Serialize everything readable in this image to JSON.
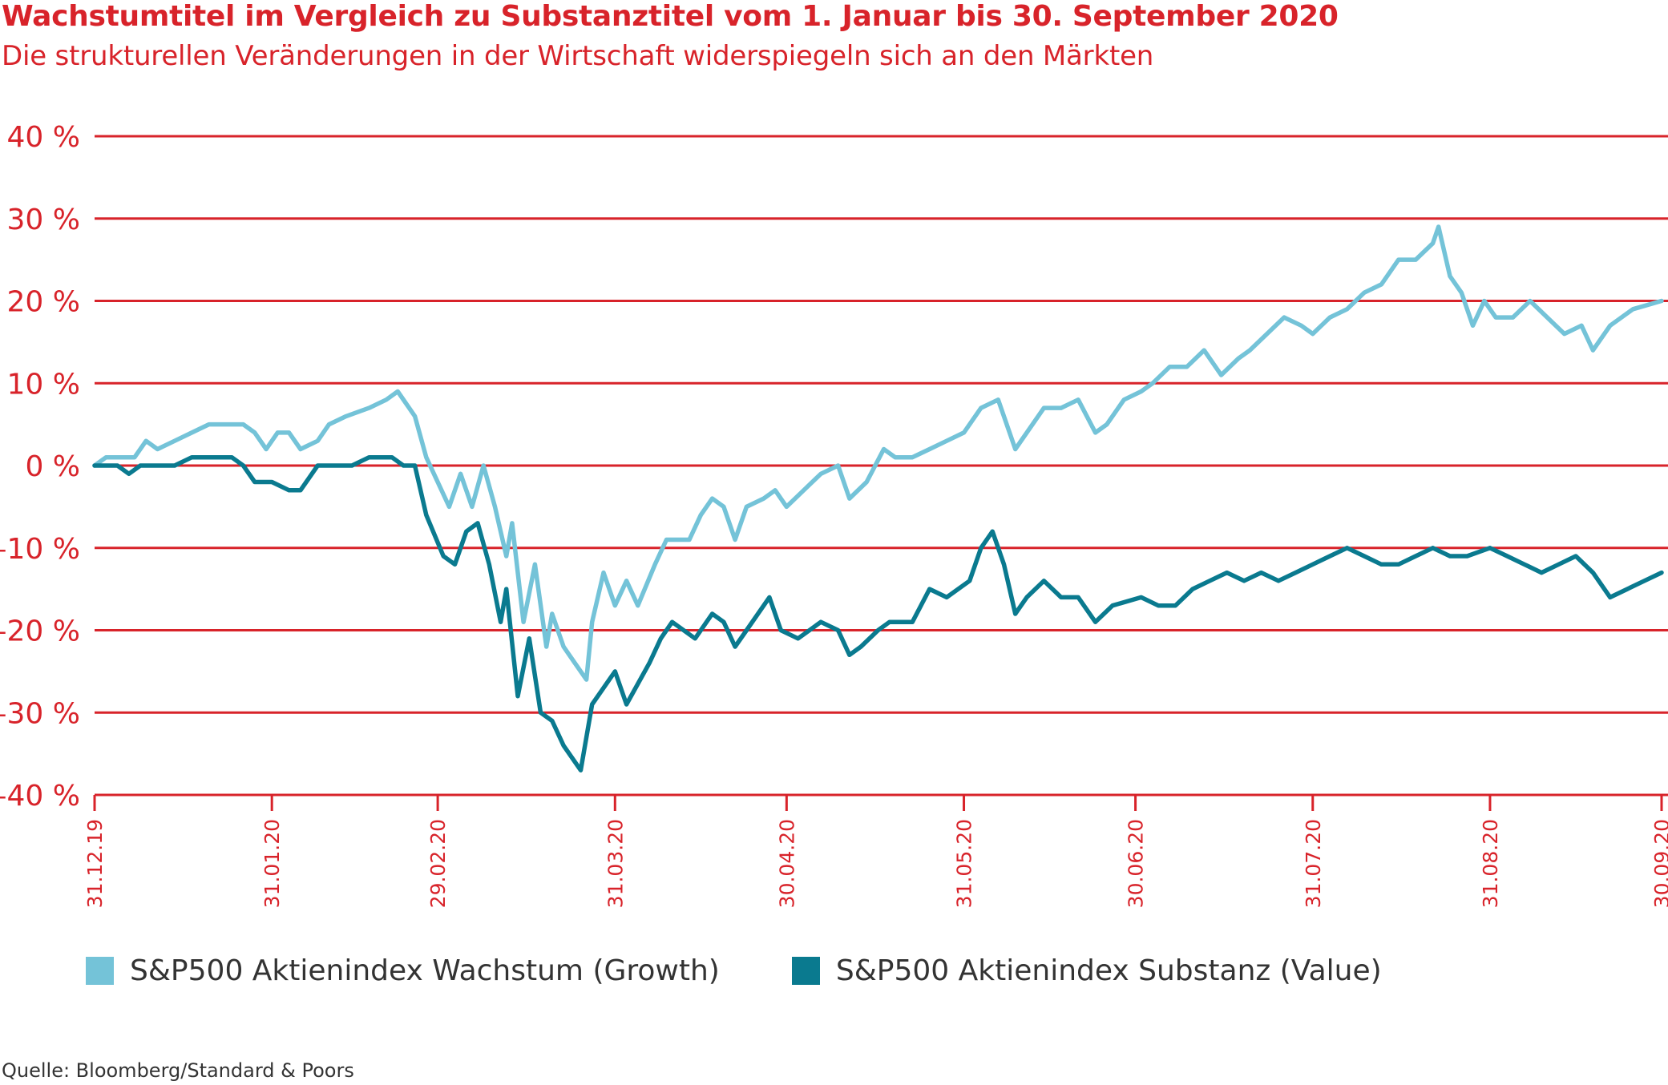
{
  "title": "Wachstumtitel im Vergleich zu Substanztitel vom 1. Januar bis 30. September 2020",
  "subtitle": "Die strukturellen Veränderungen in der Wirtschaft widerspiegeln sich an den Märkten",
  "source": "Quelle: Bloomberg/Standard & Poors",
  "colors": {
    "accent": "#d8232a",
    "growth": "#74c3d8",
    "value": "#0a7a8f",
    "text": "#333333"
  },
  "legend": [
    {
      "label": "S&P500 Aktienindex Wachstum (Growth)",
      "color": "#74c3d8"
    },
    {
      "label": "S&P500 Aktienindex Substanz (Value)",
      "color": "#0a7a8f"
    }
  ],
  "chart_data": {
    "type": "line",
    "title": "Wachstumtitel im Vergleich zu Substanztitel vom 1. Januar bis 30. September 2020",
    "ylim": [
      -40,
      40
    ],
    "y_ticks": [
      40,
      30,
      20,
      10,
      0,
      -10,
      -20,
      -30,
      -40
    ],
    "y_tick_labels": [
      "40 %",
      "30 %",
      "20 %",
      "10 %",
      "0 %",
      "–10 %",
      "–20 %",
      "–30 %",
      "–40 %"
    ],
    "x_tick_labels": [
      "31.12.19",
      "31.01.20",
      "29.02.20",
      "31.03.20",
      "30.04.20",
      "31.05.20",
      "30.06.20",
      "31.07.20",
      "31.08.20",
      "30.09.20"
    ],
    "grid": true,
    "legend_position": "bottom",
    "series": [
      {
        "name": "S&P500 Aktienindex Wachstum (Growth)",
        "color": "#74c3d8",
        "points": [
          [
            "31.12.19",
            0
          ],
          [
            "02.01.20",
            1
          ],
          [
            "07.01.20",
            1
          ],
          [
            "09.01.20",
            3
          ],
          [
            "11.01.20",
            2
          ],
          [
            "14.01.20",
            3
          ],
          [
            "17.01.20",
            4
          ],
          [
            "20.01.20",
            5
          ],
          [
            "26.01.20",
            5
          ],
          [
            "28.01.20",
            4
          ],
          [
            "30.01.20",
            2
          ],
          [
            "01.02.20",
            4
          ],
          [
            "03.02.20",
            4
          ],
          [
            "05.02.20",
            2
          ],
          [
            "08.02.20",
            3
          ],
          [
            "10.02.20",
            5
          ],
          [
            "13.02.20",
            6
          ],
          [
            "17.02.20",
            7
          ],
          [
            "20.02.20",
            8
          ],
          [
            "22.02.20",
            9
          ],
          [
            "25.02.20",
            6
          ],
          [
            "27.02.20",
            1
          ],
          [
            "02.03.20",
            -5
          ],
          [
            "04.03.20",
            -1
          ],
          [
            "06.03.20",
            -5
          ],
          [
            "08.03.20",
            0
          ],
          [
            "10.03.20",
            -5
          ],
          [
            "12.03.20",
            -11
          ],
          [
            "13.03.20",
            -7
          ],
          [
            "15.03.20",
            -19
          ],
          [
            "17.03.20",
            -12
          ],
          [
            "19.03.20",
            -22
          ],
          [
            "20.03.20",
            -18
          ],
          [
            "22.03.20",
            -22
          ],
          [
            "24.03.20",
            -24
          ],
          [
            "26.03.20",
            -26
          ],
          [
            "27.03.20",
            -19
          ],
          [
            "29.03.20",
            -13
          ],
          [
            "31.03.20",
            -17
          ],
          [
            "02.04.20",
            -14
          ],
          [
            "04.04.20",
            -17
          ],
          [
            "07.04.20",
            -12
          ],
          [
            "09.04.20",
            -9
          ],
          [
            "13.04.20",
            -9
          ],
          [
            "15.04.20",
            -6
          ],
          [
            "17.04.20",
            -4
          ],
          [
            "19.04.20",
            -5
          ],
          [
            "21.04.20",
            -9
          ],
          [
            "23.04.20",
            -5
          ],
          [
            "26.04.20",
            -4
          ],
          [
            "28.04.20",
            -3
          ],
          [
            "30.04.20",
            -5
          ],
          [
            "03.05.20",
            -3
          ],
          [
            "06.05.20",
            -1
          ],
          [
            "09.05.20",
            0
          ],
          [
            "11.05.20",
            -4
          ],
          [
            "14.05.20",
            -2
          ],
          [
            "17.05.20",
            2
          ],
          [
            "19.05.20",
            1
          ],
          [
            "22.05.20",
            1
          ],
          [
            "25.05.20",
            2
          ],
          [
            "28.05.20",
            3
          ],
          [
            "31.05.20",
            4
          ],
          [
            "03.06.20",
            7
          ],
          [
            "06.06.20",
            8
          ],
          [
            "09.06.20",
            2
          ],
          [
            "11.06.20",
            4
          ],
          [
            "14.06.20",
            7
          ],
          [
            "17.06.20",
            7
          ],
          [
            "20.06.20",
            8
          ],
          [
            "23.06.20",
            4
          ],
          [
            "25.06.20",
            5
          ],
          [
            "28.06.20",
            8
          ],
          [
            "01.07.20",
            9
          ],
          [
            "03.07.20",
            10
          ],
          [
            "06.07.20",
            12
          ],
          [
            "09.07.20",
            12
          ],
          [
            "12.07.20",
            14
          ],
          [
            "15.07.20",
            11
          ],
          [
            "18.07.20",
            13
          ],
          [
            "20.07.20",
            14
          ],
          [
            "23.07.20",
            16
          ],
          [
            "26.07.20",
            18
          ],
          [
            "29.07.20",
            17
          ],
          [
            "31.07.20",
            16
          ],
          [
            "03.08.20",
            18
          ],
          [
            "06.08.20",
            19
          ],
          [
            "09.08.20",
            21
          ],
          [
            "12.08.20",
            22
          ],
          [
            "15.08.20",
            25
          ],
          [
            "18.08.20",
            25
          ],
          [
            "21.08.20",
            27
          ],
          [
            "22.08.20",
            29
          ],
          [
            "24.08.20",
            23
          ],
          [
            "26.08.20",
            21
          ],
          [
            "28.08.20",
            17
          ],
          [
            "30.08.20",
            20
          ],
          [
            "01.09.20",
            18
          ],
          [
            "04.09.20",
            18
          ],
          [
            "07.09.20",
            20
          ],
          [
            "10.09.20",
            18
          ],
          [
            "13.09.20",
            16
          ],
          [
            "16.09.20",
            17
          ],
          [
            "18.09.20",
            14
          ],
          [
            "21.09.20",
            17
          ],
          [
            "25.09.20",
            19
          ],
          [
            "30.09.20",
            20
          ]
        ]
      },
      {
        "name": "S&P500 Aktienindex Substanz (Value)",
        "color": "#0a7a8f",
        "points": [
          [
            "31.12.19",
            0
          ],
          [
            "04.01.20",
            0
          ],
          [
            "06.01.20",
            -1
          ],
          [
            "08.01.20",
            0
          ],
          [
            "14.01.20",
            0
          ],
          [
            "17.01.20",
            1
          ],
          [
            "24.01.20",
            1
          ],
          [
            "26.01.20",
            0
          ],
          [
            "28.01.20",
            -2
          ],
          [
            "31.01.20",
            -2
          ],
          [
            "03.02.20",
            -3
          ],
          [
            "05.02.20",
            -3
          ],
          [
            "08.02.20",
            0
          ],
          [
            "14.02.20",
            0
          ],
          [
            "17.02.20",
            1
          ],
          [
            "21.02.20",
            1
          ],
          [
            "23.02.20",
            0
          ],
          [
            "25.02.20",
            0
          ],
          [
            "27.02.20",
            -6
          ],
          [
            "01.03.20",
            -11
          ],
          [
            "03.03.20",
            -12
          ],
          [
            "05.03.20",
            -8
          ],
          [
            "07.03.20",
            -7
          ],
          [
            "09.03.20",
            -12
          ],
          [
            "11.03.20",
            -19
          ],
          [
            "12.03.20",
            -15
          ],
          [
            "14.03.20",
            -28
          ],
          [
            "16.03.20",
            -21
          ],
          [
            "18.03.20",
            -30
          ],
          [
            "20.03.20",
            -31
          ],
          [
            "22.03.20",
            -34
          ],
          [
            "25.03.20",
            -37
          ],
          [
            "27.03.20",
            -29
          ],
          [
            "29.03.20",
            -27
          ],
          [
            "31.03.20",
            -25
          ],
          [
            "02.04.20",
            -29
          ],
          [
            "06.04.20",
            -24
          ],
          [
            "08.04.20",
            -21
          ],
          [
            "10.04.20",
            -19
          ],
          [
            "14.04.20",
            -21
          ],
          [
            "17.04.20",
            -18
          ],
          [
            "19.04.20",
            -19
          ],
          [
            "21.04.20",
            -22
          ],
          [
            "23.04.20",
            -20
          ],
          [
            "27.04.20",
            -16
          ],
          [
            "29.04.20",
            -20
          ],
          [
            "02.05.20",
            -21
          ],
          [
            "06.05.20",
            -19
          ],
          [
            "09.05.20",
            -20
          ],
          [
            "11.05.20",
            -23
          ],
          [
            "13.05.20",
            -22
          ],
          [
            "16.05.20",
            -20
          ],
          [
            "18.05.20",
            -19
          ],
          [
            "22.05.20",
            -19
          ],
          [
            "25.05.20",
            -15
          ],
          [
            "28.05.20",
            -16
          ],
          [
            "01.06.20",
            -14
          ],
          [
            "03.06.20",
            -10
          ],
          [
            "05.06.20",
            -8
          ],
          [
            "07.06.20",
            -12
          ],
          [
            "09.06.20",
            -18
          ],
          [
            "11.06.20",
            -16
          ],
          [
            "14.06.20",
            -14
          ],
          [
            "17.06.20",
            -16
          ],
          [
            "20.06.20",
            -16
          ],
          [
            "23.06.20",
            -19
          ],
          [
            "26.06.20",
            -17
          ],
          [
            "01.07.20",
            -16
          ],
          [
            "04.07.20",
            -17
          ],
          [
            "07.07.20",
            -17
          ],
          [
            "10.07.20",
            -15
          ],
          [
            "13.07.20",
            -14
          ],
          [
            "16.07.20",
            -13
          ],
          [
            "19.07.20",
            -14
          ],
          [
            "22.07.20",
            -13
          ],
          [
            "25.07.20",
            -14
          ],
          [
            "28.07.20",
            -13
          ],
          [
            "31.07.20",
            -12
          ],
          [
            "03.08.20",
            -11
          ],
          [
            "06.08.20",
            -10
          ],
          [
            "09.08.20",
            -11
          ],
          [
            "12.08.20",
            -12
          ],
          [
            "15.08.20",
            -12
          ],
          [
            "18.08.20",
            -11
          ],
          [
            "21.08.20",
            -10
          ],
          [
            "24.08.20",
            -11
          ],
          [
            "27.08.20",
            -11
          ],
          [
            "31.08.20",
            -10
          ],
          [
            "03.09.20",
            -11
          ],
          [
            "06.09.20",
            -12
          ],
          [
            "09.09.20",
            -13
          ],
          [
            "12.09.20",
            -12
          ],
          [
            "15.09.20",
            -11
          ],
          [
            "18.09.20",
            -13
          ],
          [
            "21.09.20",
            -16
          ],
          [
            "24.09.20",
            -15
          ],
          [
            "27.09.20",
            -14
          ],
          [
            "30.09.20",
            -13
          ]
        ]
      }
    ]
  }
}
